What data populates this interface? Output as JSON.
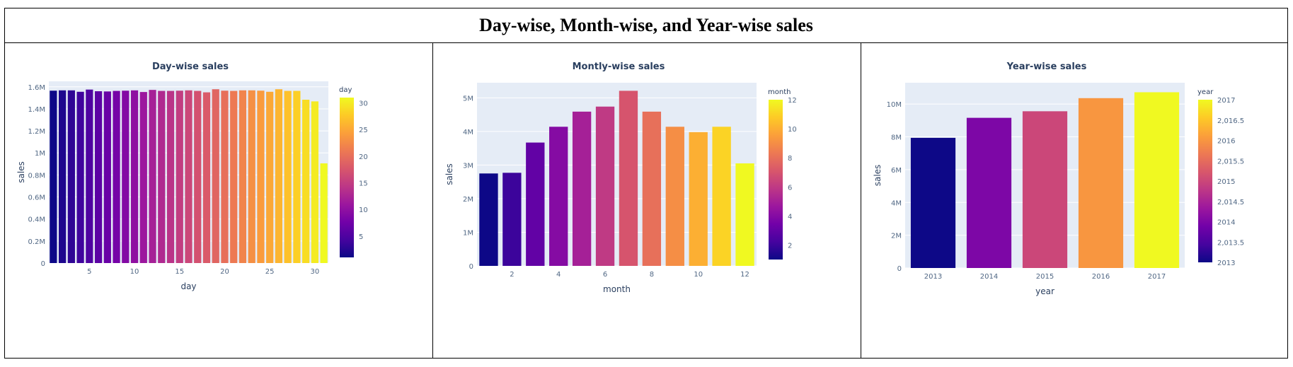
{
  "page_title": "Day-wise, Month-wise, and Year-wise sales",
  "chart_data": [
    {
      "type": "bar",
      "title": "Day-wise sales",
      "xlabel": "day",
      "ylabel": "sales",
      "x": [
        1,
        2,
        3,
        4,
        5,
        6,
        7,
        8,
        9,
        10,
        11,
        12,
        13,
        14,
        15,
        16,
        17,
        18,
        19,
        20,
        21,
        22,
        23,
        24,
        25,
        26,
        27,
        28,
        29,
        30,
        31
      ],
      "values": [
        1.565,
        1.568,
        1.568,
        1.555,
        1.575,
        1.56,
        1.558,
        1.563,
        1.565,
        1.568,
        1.553,
        1.572,
        1.563,
        1.563,
        1.565,
        1.568,
        1.563,
        1.55,
        1.578,
        1.565,
        1.563,
        1.568,
        1.568,
        1.565,
        1.555,
        1.578,
        1.563,
        1.563,
        1.483,
        1.468,
        0.905
      ],
      "value_unit": "M",
      "ylim": [
        0,
        1.65
      ],
      "xlim": [
        0.5,
        31.5
      ],
      "yticks": [
        0,
        0.2,
        0.4,
        0.6,
        0.8,
        1,
        1.2,
        1.4,
        1.6
      ],
      "ytick_labels": [
        "0",
        "0.2M",
        "0.4M",
        "0.6M",
        "0.8M",
        "1M",
        "1.2M",
        "1.4M",
        "1.6M"
      ],
      "xticks": [
        5,
        10,
        15,
        20,
        25,
        30
      ],
      "xtick_labels": [
        "5",
        "10",
        "15",
        "20",
        "25",
        "30"
      ],
      "colorbar": {
        "title": "day",
        "min": 1,
        "max": 31,
        "ticks": [
          5,
          10,
          15,
          20,
          25,
          30
        ],
        "tick_labels": [
          "5",
          "10",
          "15",
          "20",
          "25",
          "30"
        ]
      },
      "colorscale": "plasma",
      "grid": true,
      "background": "#e5ecf6"
    },
    {
      "type": "bar",
      "title": "Montly-wise sales",
      "xlabel": "month",
      "ylabel": "sales",
      "x": [
        1,
        2,
        3,
        4,
        5,
        6,
        7,
        8,
        9,
        10,
        11,
        12
      ],
      "values": [
        2.75,
        2.77,
        3.67,
        4.14,
        4.59,
        4.74,
        5.21,
        4.59,
        4.14,
        3.98,
        4.14,
        3.05
      ],
      "value_unit": "M",
      "ylim": [
        0,
        5.45
      ],
      "xlim": [
        0.5,
        12.5
      ],
      "yticks": [
        0,
        1,
        2,
        3,
        4,
        5
      ],
      "ytick_labels": [
        "0",
        "1M",
        "2M",
        "3M",
        "4M",
        "5M"
      ],
      "xticks": [
        2,
        4,
        6,
        8,
        10,
        12
      ],
      "xtick_labels": [
        "2",
        "4",
        "6",
        "8",
        "10",
        "12"
      ],
      "colorbar": {
        "title": "month",
        "min": 1,
        "max": 12,
        "ticks": [
          2,
          4,
          6,
          8,
          10,
          12
        ],
        "tick_labels": [
          "2",
          "4",
          "6",
          "8",
          "10",
          "12"
        ]
      },
      "colorscale": "plasma",
      "grid": true,
      "background": "#e5ecf6"
    },
    {
      "type": "bar",
      "title": "Year-wise sales",
      "xlabel": "year",
      "ylabel": "sales",
      "x": [
        2013,
        2014,
        2015,
        2016,
        2017
      ],
      "categories": [
        "2013",
        "2014",
        "2015",
        "2016",
        "2017"
      ],
      "values": [
        7.94,
        9.16,
        9.56,
        10.36,
        10.72
      ],
      "value_unit": "M",
      "ylim": [
        0,
        11.3
      ],
      "xlim": [
        2012.5,
        2017.5
      ],
      "yticks": [
        0,
        2,
        4,
        6,
        8,
        10
      ],
      "ytick_labels": [
        "0",
        "2M",
        "4M",
        "6M",
        "8M",
        "10M"
      ],
      "xticks": [
        2013,
        2014,
        2015,
        2016,
        2017
      ],
      "xtick_labels": [
        "2013",
        "2014",
        "2015",
        "2016",
        "2017"
      ],
      "colorbar": {
        "title": "year",
        "min": 2013,
        "max": 2017,
        "ticks": [
          2013,
          2013.5,
          2014,
          2014.5,
          2015,
          2015.5,
          2016,
          2016.5,
          2017
        ],
        "tick_labels": [
          "2013",
          "2,013.5",
          "2014",
          "2,014.5",
          "2015",
          "2,015.5",
          "2016",
          "2,016.5",
          "2017"
        ]
      },
      "colorscale": "plasma",
      "grid": true,
      "background": "#e5ecf6"
    }
  ]
}
